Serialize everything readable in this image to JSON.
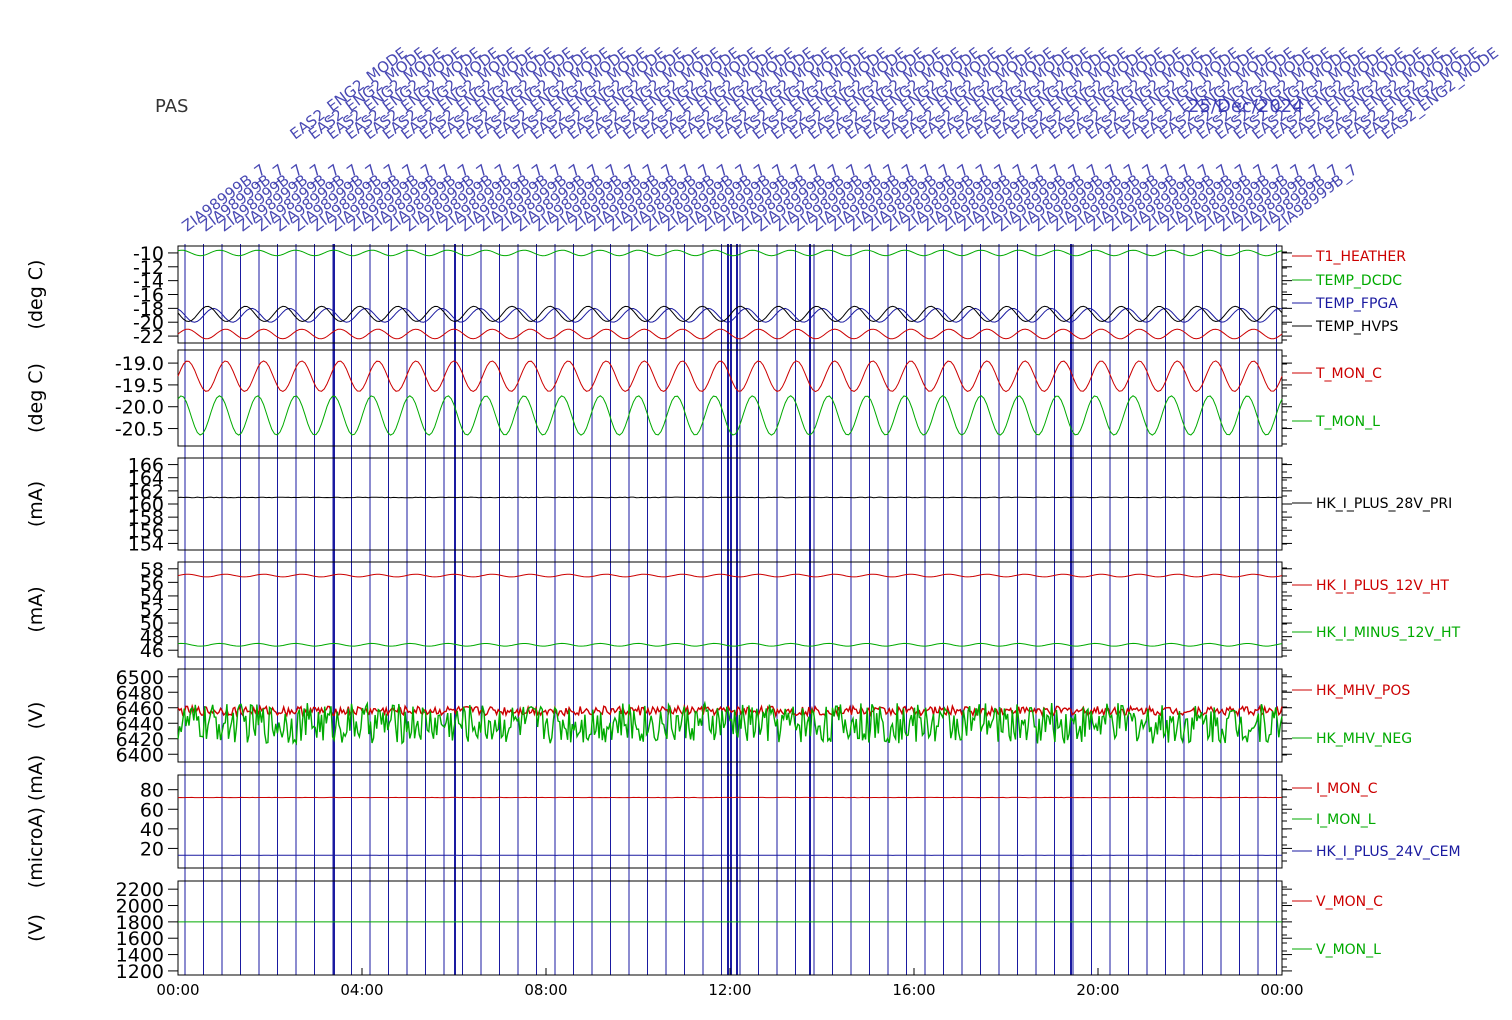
{
  "instrument": "PAS",
  "date_text": "25/Dec/2024",
  "colors": {
    "red": "#cc0000",
    "green": "#00aa00",
    "blue": "#1a1aa0",
    "black": "#000000",
    "event_line": "#1a1aa0",
    "frame": "#000000"
  },
  "x_ticks": [
    "00:00",
    "04:00",
    "08:00",
    "12:00",
    "16:00",
    "20:00",
    "00:00"
  ],
  "event_annotations": {
    "mode_label": "EAS2_ENG2_MODE",
    "zia_label": "ZIA98999B_7"
  },
  "chart_data": [
    {
      "type": "line",
      "ylabel": "(deg C)",
      "yticks": [
        "-10",
        "-12",
        "-14",
        "-16",
        "-18",
        "-20",
        "-22"
      ],
      "ylim": [
        -23,
        -9
      ],
      "series": [
        {
          "name": "T1_HEATHER",
          "color": "#cc0000",
          "mean": -21.7,
          "amp": 0.7,
          "style": "sine"
        },
        {
          "name": "TEMP_DCDC",
          "color": "#00aa00",
          "mean": -10.0,
          "amp": 0.4,
          "style": "sine"
        },
        {
          "name": "TEMP_FPGA",
          "color": "#1a1aa0",
          "mean": -19.0,
          "amp": 1.0,
          "style": "sine"
        },
        {
          "name": "TEMP_HVPS",
          "color": "#000000",
          "mean": -18.8,
          "amp": 1.1,
          "style": "sine"
        }
      ]
    },
    {
      "type": "line",
      "ylabel": "(deg C)",
      "yticks": [
        "-19.0",
        "-19.5",
        "-20.0",
        "-20.5"
      ],
      "ylim": [
        -20.9,
        -18.7
      ],
      "series": [
        {
          "name": "T_MON_C",
          "color": "#cc0000",
          "mean": -19.3,
          "amp": 0.35,
          "style": "sine"
        },
        {
          "name": "T_MON_L",
          "color": "#00aa00",
          "mean": -20.2,
          "amp": 0.45,
          "style": "sine"
        }
      ]
    },
    {
      "type": "line",
      "ylabel": "(mA)",
      "yticks": [
        "166",
        "164",
        "162",
        "160",
        "158",
        "156",
        "154"
      ],
      "ylim": [
        153,
        167
      ],
      "series": [
        {
          "name": "HK_I_PLUS_28V_PRI",
          "color": "#000000",
          "mean": 161.0,
          "amp": 0.1,
          "style": "flat"
        }
      ]
    },
    {
      "type": "line",
      "ylabel": "(mA)",
      "yticks": [
        "58",
        "56",
        "54",
        "52",
        "50",
        "48",
        "46"
      ],
      "ylim": [
        45,
        59
      ],
      "series": [
        {
          "name": "HK_I_PLUS_12V_HT",
          "color": "#cc0000",
          "mean": 57.0,
          "amp": 0.2,
          "style": "sine"
        },
        {
          "name": "HK_I_MINUS_12V_HT",
          "color": "#00aa00",
          "mean": 46.8,
          "amp": 0.2,
          "style": "sine"
        }
      ]
    },
    {
      "type": "line",
      "ylabel": "(V)",
      "yticks": [
        "6500",
        "6480",
        "6460",
        "6440",
        "6420",
        "6400"
      ],
      "ylim": [
        6390,
        6510
      ],
      "series": [
        {
          "name": "HK_MHV_POS",
          "color": "#cc0000",
          "mean": 6456,
          "amp": 6,
          "style": "noisy"
        },
        {
          "name": "HK_MHV_NEG",
          "color": "#00aa00",
          "mean": 6440,
          "amp": 26,
          "style": "noisy"
        }
      ]
    },
    {
      "type": "line",
      "ylabel": "(microA) (mA)",
      "yticks": [
        "80",
        "60",
        "40",
        "20"
      ],
      "ylim": [
        0,
        95
      ],
      "series": [
        {
          "name": "I_MON_C",
          "color": "#cc0000",
          "mean": 72,
          "amp": 0.3,
          "style": "flat"
        },
        {
          "name": "I_MON_L",
          "color": "#00aa00",
          "mean": null,
          "amp": 0,
          "style": "none"
        },
        {
          "name": "HK_I_PLUS_24V_CEM",
          "color": "#1a1aa0",
          "mean": 13,
          "amp": 0.2,
          "style": "flat"
        }
      ]
    },
    {
      "type": "line",
      "ylabel": "(V)",
      "yticks": [
        "2200",
        "2000",
        "1800",
        "1600",
        "1400",
        "1200"
      ],
      "ylim": [
        1150,
        2300
      ],
      "series": [
        {
          "name": "V_MON_C",
          "color": "#cc0000",
          "mean": null,
          "amp": 0,
          "style": "none"
        },
        {
          "name": "V_MON_L",
          "color": "#00aa00",
          "mean": 1800,
          "amp": 0,
          "style": "flat"
        }
      ]
    }
  ]
}
